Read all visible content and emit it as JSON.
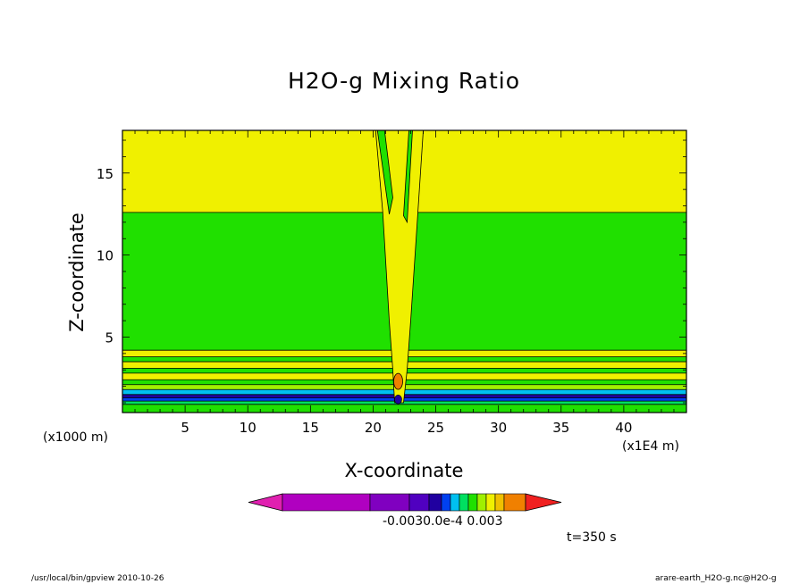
{
  "chart_data": {
    "type": "heatmap",
    "title": "H2O-g Mixing Ratio",
    "xlabel": "X-coordinate",
    "ylabel": "Z-coordinate",
    "x_unit": "(x1E4 m)",
    "y_unit": "(x1000 m)",
    "xlim": [
      0,
      45
    ],
    "ylim": [
      0.4,
      17.6
    ],
    "x_ticks": [
      5,
      10,
      15,
      20,
      25,
      30,
      35,
      40
    ],
    "y_ticks": [
      5,
      10,
      15
    ],
    "colorbar": {
      "colors": [
        "#e020b0",
        "#b000c0",
        "#8000c0",
        "#5000c0",
        "#2000a0",
        "#0040f0",
        "#00c0f0",
        "#00e060",
        "#20e000",
        "#a0f000",
        "#f0f000",
        "#f0c000",
        "#f08000",
        "#f02020"
      ],
      "tick_labels": [
        "-0.003",
        "-0.003",
        "0.0",
        "5e-4",
        "0.003"
      ],
      "tick_text": "-0.0030.0e-4  0.003"
    },
    "field_bands": [
      {
        "z_from": 12.6,
        "z_to": 17.6,
        "color": "#f0f000"
      },
      {
        "z_from": 4.2,
        "z_to": 12.6,
        "color": "#20e000"
      },
      {
        "z_from": 3.8,
        "z_to": 4.2,
        "color": "#f0f000"
      },
      {
        "z_from": 3.5,
        "z_to": 3.8,
        "color": "#20e000"
      },
      {
        "z_from": 3.1,
        "z_to": 3.5,
        "color": "#f0f000"
      },
      {
        "z_from": 2.8,
        "z_to": 3.1,
        "color": "#20e000"
      },
      {
        "z_from": 2.4,
        "z_to": 2.8,
        "color": "#f0f000"
      },
      {
        "z_from": 2.1,
        "z_to": 2.4,
        "color": "#20e000"
      },
      {
        "z_from": 1.8,
        "z_to": 2.1,
        "color": "#a0f000"
      },
      {
        "z_from": 1.5,
        "z_to": 1.8,
        "color": "#00c0f0"
      },
      {
        "z_from": 1.3,
        "z_to": 1.5,
        "color": "#2000a0"
      },
      {
        "z_from": 1.1,
        "z_to": 1.3,
        "color": "#0040f0"
      },
      {
        "z_from": 0.9,
        "z_to": 1.1,
        "color": "#00e060"
      },
      {
        "z_from": 0.4,
        "z_to": 0.9,
        "color": "#20e000"
      }
    ],
    "plume": {
      "x_center": 22.0,
      "x_left_top": 20.2,
      "x_right_top": 24.0,
      "z_base": 1.0,
      "z_top": 12.6,
      "color": "#f0f000"
    }
  },
  "time_label": "t=350 s",
  "footer_left": "/usr/local/bin/gpview  2010-10-26",
  "footer_right": "arare-earth_H2O-g.nc@H2O-g"
}
